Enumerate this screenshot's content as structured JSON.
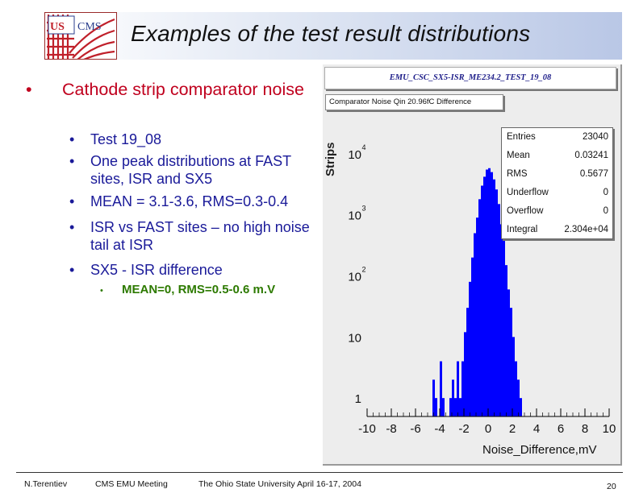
{
  "slide": {
    "title": "Examples of the test result distributions",
    "logo_text": "US CMS"
  },
  "bullets": {
    "main": "Cathode strip comparator noise",
    "sub": [
      "Test 19_08",
      "One peak distributions  at FAST sites, ISR and SX5",
      "MEAN = 3.1-3.6, RMS=0.3-0.4",
      "ISR vs FAST sites – no high noise tail at ISR",
      "SX5 - ISR  difference"
    ],
    "subsub": "MEAN=0, RMS=0.5-0.6 m.V"
  },
  "plot": {
    "canvas_title": "EMU_CSC_SX5-ISR_ME234.2_TEST_19_08",
    "hist_title": "Comparator  Noise  Qin  20.96fC  Difference",
    "stats": [
      {
        "label": "Entries",
        "value": "23040"
      },
      {
        "label": "Mean",
        "value": "0.03241"
      },
      {
        "label": "RMS",
        "value": "0.5677"
      },
      {
        "label": "Underflow",
        "value": "0"
      },
      {
        "label": "Overflow",
        "value": "0"
      },
      {
        "label": "Integral",
        "value": "2.304e+04"
      }
    ]
  },
  "chart_data": {
    "type": "bar",
    "xlabel": "Noise_Difference,mV",
    "ylabel": "Strips",
    "xlim": [
      -10,
      10
    ],
    "ylim": [
      0.5,
      20000
    ],
    "log_y": true,
    "fill_color": "#0000ff",
    "x_ticks": [
      "-10",
      "-8",
      "-6",
      "-4",
      "-2",
      "0",
      "2",
      "4",
      "6",
      "8",
      "10"
    ],
    "y_ticks": [
      {
        "value": 1,
        "base": "1",
        "exp": ""
      },
      {
        "value": 10,
        "base": "10",
        "exp": ""
      },
      {
        "value": 100,
        "base": "10",
        "exp": "2"
      },
      {
        "value": 1000,
        "base": "10",
        "exp": "3"
      },
      {
        "value": 10000,
        "base": "10",
        "exp": "4"
      }
    ],
    "bin_width": 0.2,
    "bin_starts": [
      -4.6,
      -4.4,
      -4.0,
      -3.8,
      -3.2,
      -3.0,
      -2.8,
      -2.6,
      -2.4,
      -2.2,
      -2.0,
      -1.8,
      -1.6,
      -1.4,
      -1.2,
      -1.0,
      -0.8,
      -0.6,
      -0.4,
      -0.2,
      0.0,
      0.2,
      0.4,
      0.6,
      0.8,
      1.0,
      1.2,
      1.4,
      1.6,
      1.8,
      2.0,
      2.2,
      2.4,
      2.6
    ],
    "values": [
      2,
      1,
      4,
      1,
      1,
      2,
      1,
      4,
      1,
      4,
      12,
      30,
      80,
      200,
      500,
      900,
      1800,
      3000,
      4200,
      5500,
      5800,
      5000,
      3800,
      2600,
      1500,
      700,
      380,
      150,
      60,
      30,
      10,
      4,
      2,
      1
    ]
  },
  "footer": {
    "author": "N.Terentiev",
    "meeting": "CMS EMU Meeting",
    "venue": "The Ohio State University   April 16-17, 2004",
    "page": "20"
  }
}
